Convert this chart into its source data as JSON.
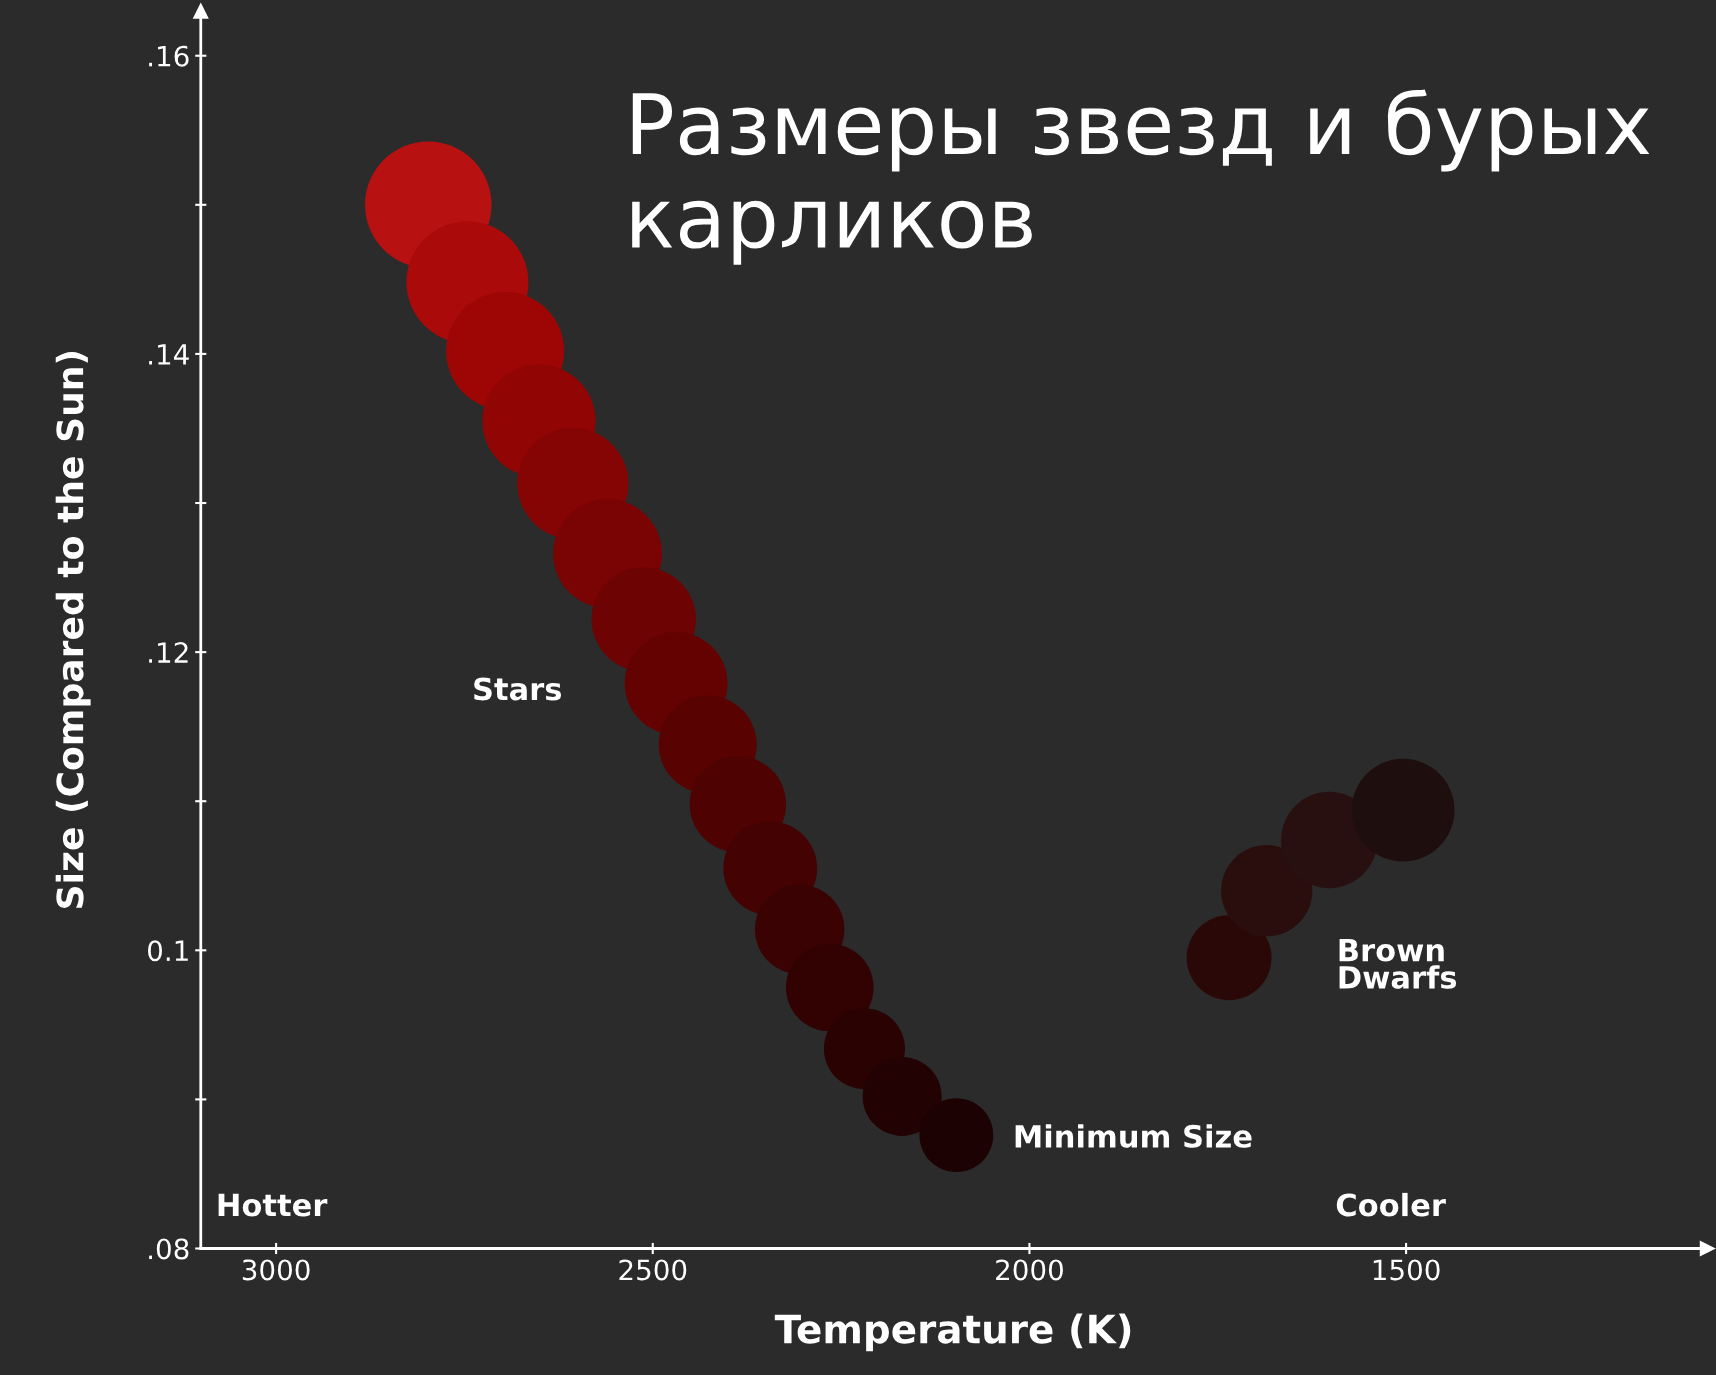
{
  "chart_data": {
    "type": "bubble",
    "title": "Размеры звезд и бурых карликов",
    "xlabel": "Temperature (K)",
    "ylabel": "Size (Compared to the Sun)",
    "x": [
      2798,
      2746,
      2696,
      2651,
      2606,
      2560,
      2512,
      2469,
      2427,
      2387,
      2344,
      2305,
      2265,
      2219,
      2169,
      2097,
      1735,
      1685,
      1602,
      1504
    ],
    "values": [
      0.15,
      0.1448,
      0.1402,
      0.1355,
      0.1313,
      0.1266,
      0.1222,
      0.1179,
      0.1138,
      0.1098,
      0.1055,
      0.1014,
      0.0975,
      0.0934,
      0.0902,
      0.0876,
      0.0995,
      0.104,
      0.1074,
      0.1094
    ],
    "sizes": [
      1,
      0.93,
      0.87,
      0.8,
      0.77,
      0.74,
      0.68,
      0.66,
      0.6,
      0.58,
      0.55,
      0.5,
      0.48,
      0.41,
      0.39,
      0.34,
      0.45,
      0.52,
      0.58,
      0.66
    ],
    "colors": [
      "#b81111",
      "#aa0a0a",
      "#9e0606",
      "#920505",
      "#850404",
      "#7a0303",
      "#6e0303",
      "#640202",
      "#580202",
      "#4e0202",
      "#440202",
      "#3a0202",
      "#320202",
      "#2a0202",
      "#220202",
      "#1c0202",
      "#2a0808",
      "#2a0e0e",
      "#281010",
      "#1e0e0e"
    ],
    "xlim": [
      3100,
      1100
    ],
    "xticks": [
      3000,
      2500,
      2000,
      1500
    ],
    "ylim": [
      0.08,
      0.163
    ],
    "yticks": [
      {
        "value": 0.08,
        "label": ".08"
      },
      {
        "value": 0.09,
        "label": null
      },
      {
        "value": 0.1,
        "label": "0.1"
      },
      {
        "value": 0.11,
        "label": null
      },
      {
        "value": 0.12,
        "label": ".12"
      },
      {
        "value": 0.13,
        "label": null
      },
      {
        "value": 0.14,
        "label": ".14"
      },
      {
        "value": 0.15,
        "label": null
      },
      {
        "value": 0.16,
        "label": ".16"
      }
    ],
    "annotations": [
      "Stars",
      "Minimum Size",
      "Brown\nDwarfs",
      "Hotter",
      "Cooler"
    ],
    "grid": false,
    "legend": false
  }
}
